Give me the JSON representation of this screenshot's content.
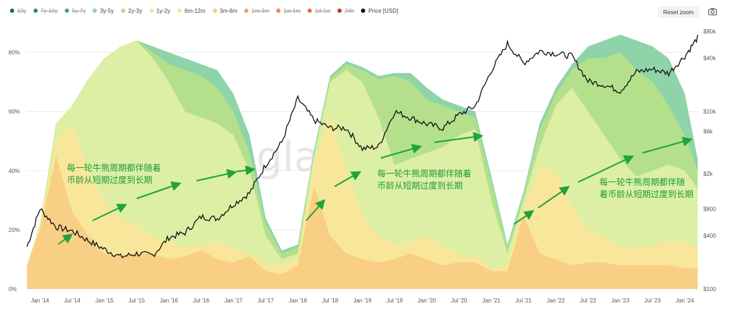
{
  "legend": [
    {
      "label": "10y",
      "color": "#1f6e4a",
      "off": true
    },
    {
      "label": "7y-10y",
      "color": "#2e8b6a",
      "off": true
    },
    {
      "label": "5y-7y",
      "color": "#47a37d",
      "off": true
    },
    {
      "label": "3y-5y",
      "color": "#8ed4a8",
      "off": false
    },
    {
      "label": "2y-3y",
      "color": "#b4e08c",
      "off": false
    },
    {
      "label": "1y-2y",
      "color": "#dcefa5",
      "off": false
    },
    {
      "label": "6m-12m",
      "color": "#f8e79a",
      "off": false
    },
    {
      "label": "3m-6m",
      "color": "#f8cf84",
      "off": false
    },
    {
      "label": "1m-3m",
      "color": "#f4a261",
      "off": true
    },
    {
      "label": "1w-1m",
      "color": "#ef8a4e",
      "off": true
    },
    {
      "label": "1d-1w",
      "color": "#e2703f",
      "off": true
    },
    {
      "label": "24h",
      "color": "#c0392b",
      "off": true
    },
    {
      "label": "Price [USD]",
      "color": "#111111",
      "off": false
    }
  ],
  "toolbar": {
    "reset_zoom": "Reset zoom",
    "camera_icon": "camera-icon"
  },
  "watermark": "glassnode",
  "annotations": [
    {
      "lines": [
        "每一轮牛熊周期都伴随着",
        "币龄从短期过度到长期"
      ]
    },
    {
      "lines": [
        "每一轮牛熊周期都伴随着",
        "币龄从短期过度到长期"
      ]
    },
    {
      "lines": [
        "每一轮牛熊周期都伴随",
        "着币龄从短期过度到长期"
      ]
    }
  ],
  "chart_data": {
    "type": "area",
    "stacked": true,
    "title": "",
    "xlabel": "",
    "ylabel": "",
    "ylim": [
      0,
      90
    ],
    "y_ticks": [
      "0%",
      "20%",
      "40%",
      "60%",
      "80%"
    ],
    "y2_scale": "log",
    "y2_ticks": [
      "$100",
      "$400",
      "$800",
      "$2k",
      "$6k",
      "$10k",
      "$40k",
      "$80k"
    ],
    "x_ticks": [
      "Jan '14",
      "Jul '14",
      "Jan '15",
      "Jul '15",
      "Jan '16",
      "Jul '16",
      "Jan '17",
      "Jul '17",
      "Jan '18",
      "Jul '18",
      "Jan '19",
      "Jul '19",
      "Jan '20",
      "Jul '20",
      "Jan '21",
      "Jul '21",
      "Jan '22",
      "Jul '22",
      "Jan '23",
      "Jul '23",
      "Jan '24"
    ],
    "x": [
      2013.8,
      2014.0,
      2014.25,
      2014.5,
      2014.75,
      2015.0,
      2015.25,
      2015.5,
      2015.75,
      2016.0,
      2016.25,
      2016.5,
      2016.75,
      2017.0,
      2017.25,
      2017.5,
      2017.75,
      2018.0,
      2018.25,
      2018.5,
      2018.75,
      2019.0,
      2019.25,
      2019.5,
      2019.75,
      2020.0,
      2020.25,
      2020.5,
      2020.75,
      2021.0,
      2021.25,
      2021.5,
      2021.75,
      2022.0,
      2022.25,
      2022.5,
      2022.75,
      2023.0,
      2023.25,
      2023.5,
      2023.75,
      2024.0,
      2024.2
    ],
    "series": [
      {
        "name": "3m-6m",
        "color": "#f8cf84",
        "values": [
          8,
          20,
          45,
          26,
          18,
          12,
          11,
          12,
          12,
          10,
          11,
          13,
          10,
          9,
          11,
          6,
          5,
          8,
          35,
          18,
          12,
          10,
          9,
          10,
          12,
          10,
          8,
          9,
          9,
          6,
          6,
          25,
          12,
          10,
          8,
          9,
          9,
          8,
          8,
          8,
          8,
          7,
          7
        ]
      },
      {
        "name": "6m-12m",
        "color": "#f8e79a",
        "values": [
          8,
          22,
          50,
          56,
          40,
          30,
          24,
          22,
          18,
          16,
          14,
          15,
          16,
          14,
          12,
          9,
          8,
          10,
          42,
          60,
          40,
          25,
          18,
          15,
          16,
          18,
          14,
          12,
          11,
          7,
          8,
          27,
          42,
          40,
          28,
          20,
          18,
          14,
          14,
          15,
          16,
          16,
          14
        ]
      },
      {
        "name": "1y-2y",
        "color": "#dcefa5",
        "values": [
          8,
          22,
          56,
          62,
          71,
          78,
          82,
          84,
          78,
          70,
          60,
          58,
          56,
          52,
          40,
          18,
          10,
          12,
          45,
          70,
          74,
          70,
          58,
          42,
          44,
          46,
          48,
          52,
          54,
          30,
          12,
          30,
          48,
          62,
          68,
          60,
          52,
          44,
          38,
          40,
          42,
          40,
          34
        ]
      },
      {
        "name": "2y-3y",
        "color": "#b4e08c",
        "values": [
          8,
          22,
          56,
          62,
          71,
          78,
          82,
          84,
          80,
          76,
          74,
          72,
          68,
          60,
          46,
          22,
          12,
          14,
          46,
          71,
          76,
          74,
          71,
          72,
          70,
          64,
          62,
          60,
          58,
          36,
          14,
          32,
          54,
          66,
          74,
          78,
          78,
          80,
          74,
          70,
          62,
          52,
          40
        ]
      },
      {
        "name": "3y-5y",
        "color": "#8ed4a8",
        "values": [
          8,
          22,
          56,
          62,
          71,
          78,
          82,
          84,
          82,
          80,
          78,
          76,
          74,
          66,
          52,
          24,
          13,
          15,
          47,
          72,
          77,
          75,
          72,
          73,
          73,
          68,
          64,
          62,
          60,
          38,
          15,
          33,
          56,
          68,
          76,
          82,
          84,
          86,
          84,
          82,
          78,
          66,
          44
        ]
      }
    ],
    "price": {
      "name": "Price [USD]",
      "values": [
        300,
        800,
        500,
        450,
        350,
        280,
        230,
        250,
        240,
        380,
        430,
        650,
        620,
        900,
        1200,
        2500,
        4500,
        14000,
        8000,
        6500,
        6500,
        3800,
        4000,
        10000,
        8500,
        7200,
        6500,
        9200,
        11500,
        29000,
        58000,
        35000,
        48000,
        45000,
        42000,
        22000,
        20000,
        17000,
        28000,
        30000,
        27000,
        42000,
        68000
      ]
    }
  }
}
